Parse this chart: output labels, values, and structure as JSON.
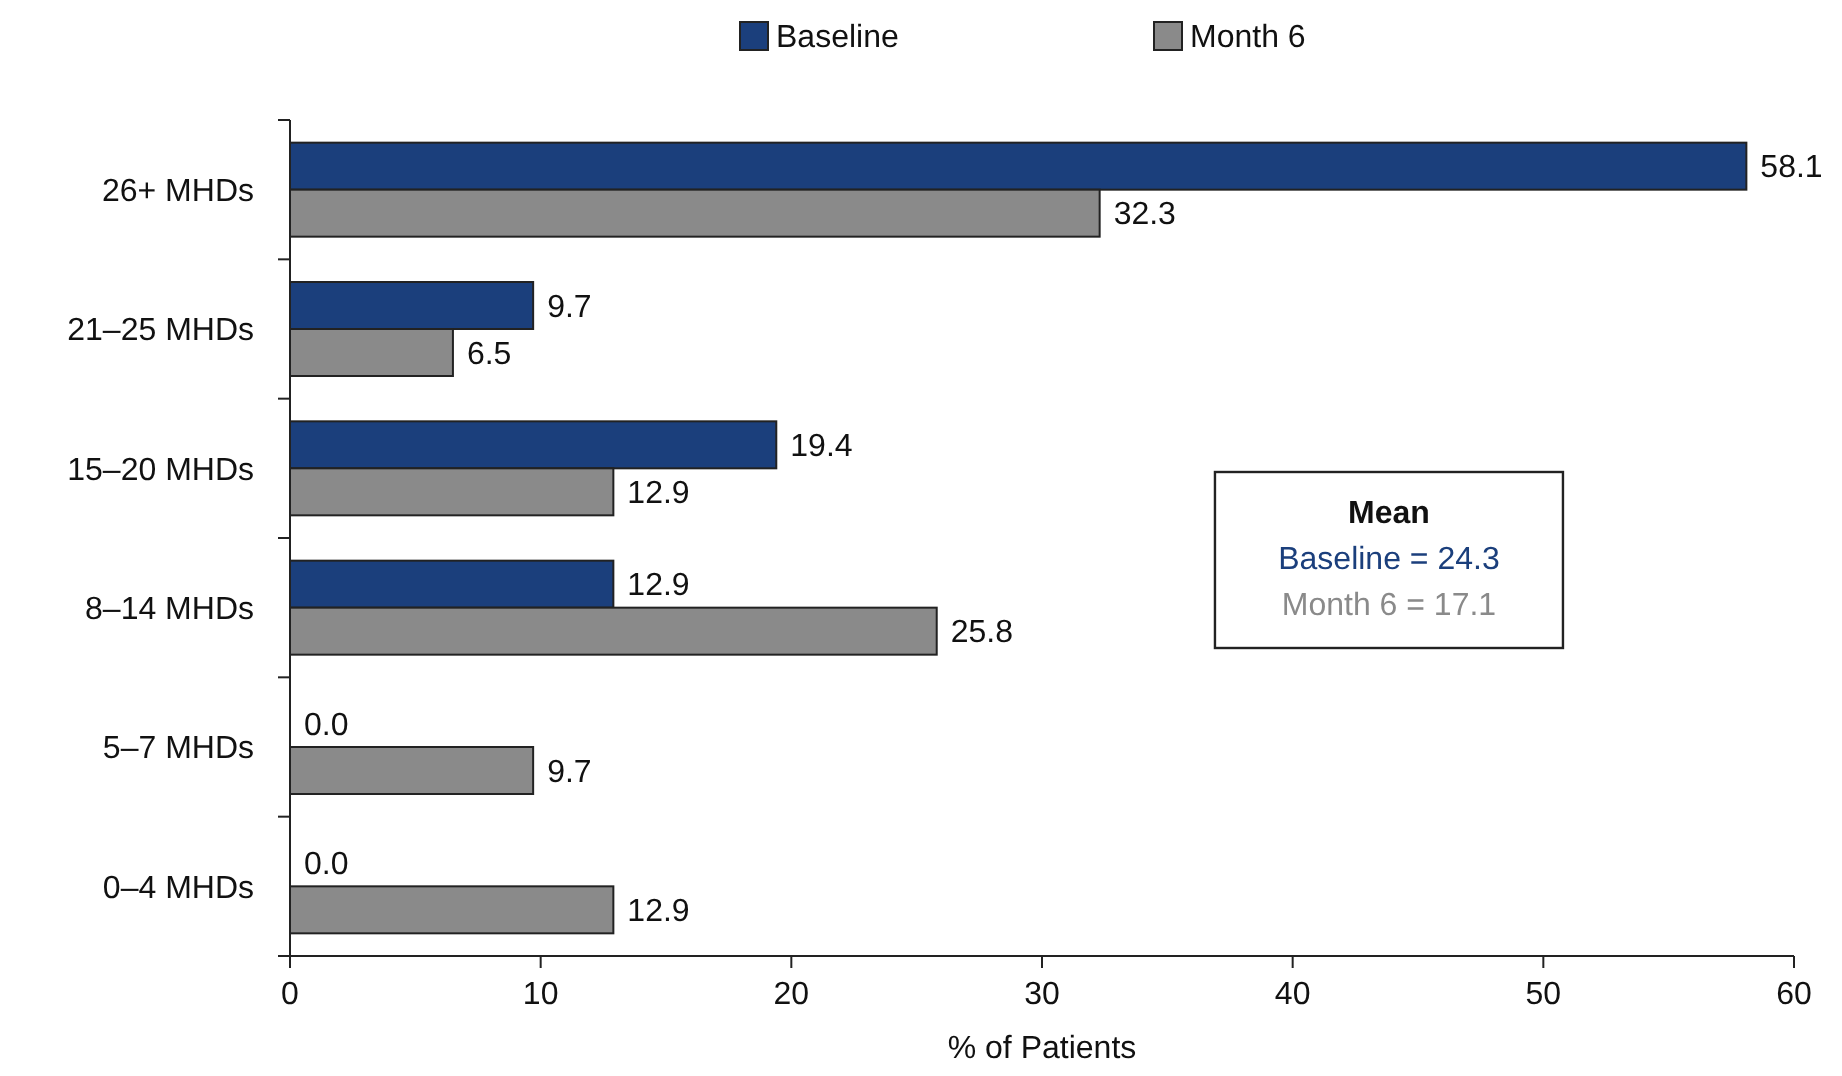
{
  "chart_data": {
    "type": "bar",
    "orientation": "horizontal",
    "xlabel": "% of Patients",
    "categories": [
      "26+ MHDs",
      "21–25 MHDs",
      "15–20 MHDs",
      "8–14 MHDs",
      "5–7 MHDs",
      "0–4 MHDs"
    ],
    "series": [
      {
        "name": "Baseline",
        "color": "#1b3f7c",
        "values": [
          58.1,
          9.7,
          19.4,
          12.9,
          0.0,
          0.0
        ],
        "value_labels": [
          "58.1",
          "9.7",
          "19.4",
          "12.9",
          "0.0",
          "0.0"
        ]
      },
      {
        "name": "Month 6",
        "color": "#8a8a8a",
        "values": [
          32.3,
          6.5,
          12.9,
          25.8,
          9.7,
          12.9
        ],
        "value_labels": [
          "32.3",
          "6.5",
          "12.9",
          "25.8",
          "9.7",
          "12.9"
        ]
      }
    ],
    "xlim": [
      0,
      60
    ],
    "xticks": [
      0,
      10,
      20,
      30,
      40,
      50,
      60
    ],
    "annotations": [
      "Mean",
      "Baseline = 24.3",
      "Month 6 = 17.1"
    ],
    "legend": "top",
    "grid": false
  }
}
